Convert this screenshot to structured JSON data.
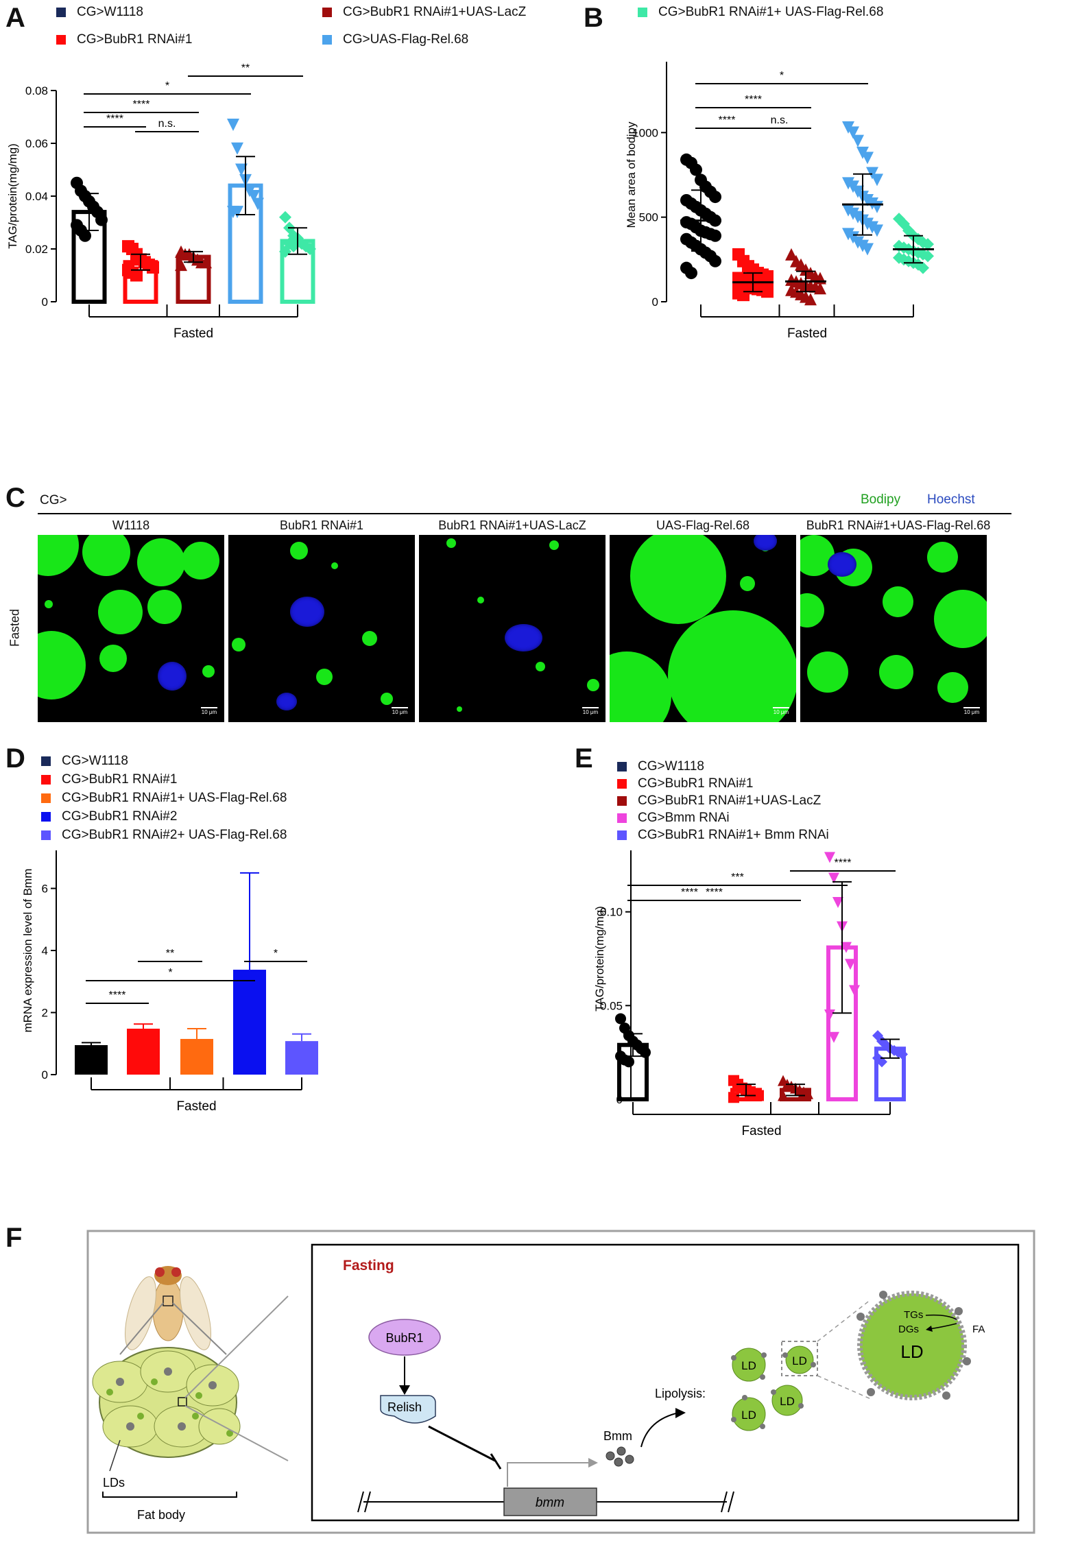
{
  "panels": {
    "A": "A",
    "B": "B",
    "C": "C",
    "D": "D",
    "E": "E",
    "F": "F"
  },
  "colors": {
    "black": "#000000",
    "red": "#ff0a0a",
    "darkred": "#a00d0d",
    "lightblue": "#4ca3ec",
    "mint": "#3ee8a6",
    "orange": "#ff6a10",
    "blue": "#0a10f0",
    "violet": "#5d55ff",
    "pink": "#ee44dd",
    "navy": "#1a2a5a"
  },
  "legendAB": {
    "w1118": "CG>W1118",
    "rnai1": "CG>BubR1 RNAi#1",
    "lacz": "CG>BubR1 RNAi#1+UAS-LacZ",
    "rel": "CG>UAS-Flag-Rel.68",
    "rnai1rel": "CG>BubR1 RNAi#1+ UAS-Flag-Rel.68"
  },
  "legendD": [
    {
      "label": "CG>W1118"
    },
    {
      "label": "CG>BubR1 RNAi#1"
    },
    {
      "label": "CG>BubR1 RNAi#1+ UAS-Flag-Rel.68"
    },
    {
      "label": "CG>BubR1 RNAi#2"
    },
    {
      "label": "CG>BubR1 RNAi#2+ UAS-Flag-Rel.68"
    }
  ],
  "legendE": [
    {
      "label": "CG>W1118"
    },
    {
      "label": "CG>BubR1 RNAi#1"
    },
    {
      "label": "CG>BubR1 RNAi#1+UAS-LacZ"
    },
    {
      "label": "CG>Bmm RNAi"
    },
    {
      "label": "CG>BubR1 RNAi#1+ Bmm RNAi"
    }
  ],
  "chart_data": [
    {
      "panel": "A",
      "type": "bar",
      "ylabel": "TAG/protein(mg/mg)",
      "xlabel": "Fasted",
      "ylim": [
        0,
        0.08
      ],
      "yticks": [
        "0",
        "0.02",
        "0.04",
        "0.06",
        "0.08"
      ],
      "categories": [
        "CG>W1118",
        "CG>BubR1 RNAi#1",
        "CG>BubR1 RNAi#1+UAS-LacZ",
        "CG>UAS-Flag-Rel.68",
        "CG>BubR1 RNAi#1+ UAS-Flag-Rel.68"
      ],
      "values": [
        0.034,
        0.015,
        0.017,
        0.044,
        0.023
      ],
      "sd": [
        0.007,
        0.003,
        0.002,
        0.011,
        0.005
      ],
      "points": [
        [
          0.045,
          0.042,
          0.04,
          0.038,
          0.036,
          0.034,
          0.031,
          0.029,
          0.027,
          0.025
        ],
        [
          0.021,
          0.02,
          0.018,
          0.016,
          0.015,
          0.014,
          0.013,
          0.012,
          0.011,
          0.01
        ],
        [
          0.019,
          0.018,
          0.018,
          0.017,
          0.016,
          0.015,
          0.015,
          0.014
        ],
        [
          0.067,
          0.058,
          0.05,
          0.046,
          0.042,
          0.04,
          0.037,
          0.034,
          0.034
        ],
        [
          0.032,
          0.028,
          0.025,
          0.024,
          0.022,
          0.021,
          0.02,
          0.019,
          0.022,
          0.021
        ]
      ],
      "significance": [
        {
          "from": 0,
          "to": 1,
          "label": "****"
        },
        {
          "from": 1,
          "to": 2,
          "label": "n.s."
        },
        {
          "from": 0,
          "to": 2,
          "label": "****"
        },
        {
          "from": 0,
          "to": 3,
          "label": "*"
        },
        {
          "from": 2,
          "to": 4,
          "label": "**"
        }
      ]
    },
    {
      "panel": "B",
      "type": "scatter",
      "ylabel": "Mean area of bodipy",
      "xlabel": "Fasted",
      "ylim": [
        0,
        1500
      ],
      "yticks": [
        "0",
        "500",
        "1000",
        "1500"
      ],
      "categories": [
        "CG>W1118",
        "CG>BubR1 RNAi#1",
        "CG>BubR1 RNAi#1+UAS-LacZ",
        "CG>UAS-Flag-Rel.68",
        "CG>BubR1 RNAi#1+ UAS-Flag-Rel.68"
      ],
      "values": [
        480,
        115,
        120,
        575,
        310
      ],
      "sd": [
        180,
        55,
        60,
        180,
        80
      ],
      "points": [
        [
          840,
          820,
          780,
          720,
          680,
          650,
          620,
          600,
          580,
          560,
          540,
          520,
          500,
          480,
          470,
          460,
          440,
          420,
          410,
          400,
          390,
          370,
          350,
          330,
          310,
          290,
          270,
          240,
          200,
          170
        ],
        [
          280,
          240,
          210,
          190,
          170,
          160,
          150,
          140,
          130,
          120,
          115,
          110,
          105,
          100,
          95,
          90,
          85,
          80,
          75,
          70,
          60,
          50,
          40
        ],
        [
          280,
          240,
          220,
          190,
          170,
          150,
          140,
          130,
          120,
          110,
          100,
          95,
          90,
          80,
          70,
          60,
          45,
          30,
          15
        ],
        [
          1030,
          1000,
          950,
          880,
          850,
          760,
          720,
          700,
          680,
          650,
          620,
          600,
          580,
          560,
          540,
          520,
          500,
          480,
          460,
          440,
          420,
          400,
          380,
          350,
          330,
          310
        ],
        [
          490,
          460,
          420,
          390,
          370,
          350,
          340,
          330,
          320,
          310,
          300,
          290,
          280,
          270,
          260,
          250,
          240,
          230,
          220,
          200
        ]
      ],
      "significance": [
        {
          "from": 0,
          "to": 1,
          "label": "****"
        },
        {
          "from": 1,
          "to": 2,
          "label": "n.s."
        },
        {
          "from": 0,
          "to": 2,
          "label": "****"
        },
        {
          "from": 0,
          "to": 3,
          "label": "*"
        },
        {
          "from": 2,
          "to": 4,
          "label": "****"
        }
      ]
    },
    {
      "panel": "D",
      "type": "bar",
      "ylabel": "mRNA expression level of Bmm",
      "xlabel": "Fasted",
      "ylim": [
        0,
        8
      ],
      "yticks": [
        "0",
        "2",
        "4",
        "6",
        "8"
      ],
      "categories": [
        "CG>W1118",
        "CG>BubR1 RNAi#1",
        "CG>BubR1 RNAi#1+ UAS-Flag-Rel.68",
        "CG>BubR1 RNAi#2",
        "CG>BubR1 RNAi#2+ UAS-Flag-Rel.68"
      ],
      "values": [
        0.95,
        1.48,
        1.15,
        3.38,
        1.08
      ],
      "sd": [
        0.08,
        0.15,
        0.33,
        3.12,
        0.23
      ],
      "significance": [
        {
          "from": 0,
          "to": 1,
          "label": "****"
        },
        {
          "from": 1,
          "to": 2,
          "label": "**"
        },
        {
          "from": 0,
          "to": 3,
          "label": "*"
        },
        {
          "from": 3,
          "to": 4,
          "label": "*"
        }
      ]
    },
    {
      "panel": "E",
      "type": "bar",
      "ylabel": "TAG/protein(mg/mg)",
      "xlabel": "Fasted",
      "ylim": [
        0,
        0.15
      ],
      "yticks": [
        "0",
        "0.05",
        "0.10",
        "0.15"
      ],
      "categories": [
        "CG>W1118",
        "CG>BubR1 RNAi#1",
        "CG>BubR1 RNAi#1+UAS-LacZ",
        "CG>Bmm RNAi",
        "CG>BubR1 RNAi#1+ Bmm RNAi"
      ],
      "values": [
        0.029,
        0.005,
        0.005,
        0.081,
        0.027
      ],
      "sd": [
        0.006,
        0.003,
        0.003,
        0.035,
        0.005
      ],
      "points": [
        [
          0.043,
          0.038,
          0.034,
          0.031,
          0.029,
          0.027,
          0.025,
          0.023,
          0.021,
          0.02
        ],
        [
          0.01,
          0.008,
          0.006,
          0.005,
          0.004,
          0.003,
          0.002,
          0.001
        ],
        [
          0.01,
          0.008,
          0.007,
          0.006,
          0.005,
          0.004,
          0.003,
          0.002
        ],
        [
          0.129,
          0.118,
          0.105,
          0.092,
          0.081,
          0.072,
          0.058,
          0.045,
          0.033
        ],
        [
          0.034,
          0.031,
          0.029,
          0.027,
          0.026,
          0.025,
          0.024,
          0.022,
          0.02
        ]
      ],
      "significance": [
        {
          "from": 0,
          "to": 1,
          "label": "****"
        },
        {
          "from": 0,
          "to": 2,
          "label": "****"
        },
        {
          "from": 0,
          "to": 3,
          "label": "***"
        },
        {
          "from": 2,
          "to": 4,
          "label": "****"
        }
      ]
    }
  ],
  "panelC": {
    "prefix": "CG>",
    "row": "Fasted",
    "stain1": "Bodipy",
    "stain2": "Hoechst",
    "images": [
      {
        "label": "W1118"
      },
      {
        "label": "BubR1 RNAi#1"
      },
      {
        "label": "BubR1 RNAi#1+UAS-LacZ"
      },
      {
        "label": "UAS-Flag-Rel.68"
      },
      {
        "label": "BubR1 RNAi#1+UAS-Flag-Rel.68"
      }
    ],
    "scalebar": "10 μm"
  },
  "panelF": {
    "fasting": "Fasting",
    "bubr1": "BubR1",
    "relish": "Relish",
    "bmm": "Bmm",
    "lipolysis": "Lipolysis:",
    "ld": "LD",
    "tgs": "TGs",
    "dgs": "DGs",
    "fa": "FA",
    "gene": "bmm",
    "lds": "LDs",
    "fatbody": "Fat body"
  }
}
